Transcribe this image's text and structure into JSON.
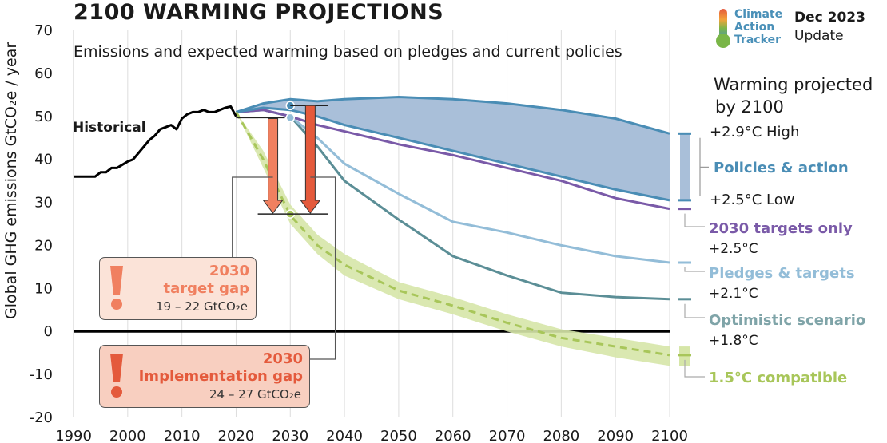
{
  "header": {
    "title": "2100 WARMING PROJECTIONS",
    "subtitle": "Emissions and expected warming based on pledges and current policies"
  },
  "logo": {
    "line1": "Climate",
    "line2": "Action",
    "line3": "Tracker"
  },
  "update": {
    "date": "Dec 2023",
    "label": "Update"
  },
  "legend_heading": {
    "line1": "Warming projected",
    "line2": "by 2100"
  },
  "labels": {
    "historical": "Historical",
    "high": "+2.9°C High",
    "policies": "Policies & action",
    "low": "+2.5°C Low",
    "targets2030": "2030 targets only",
    "targets2030_temp": "+2.5°C",
    "pledges": "Pledges & targets",
    "pledges_temp": "+2.1°C",
    "optimistic": "Optimistic scenario",
    "optimistic_temp": "+1.8°C",
    "compatible": "1.5°C compatible"
  },
  "target_gap": {
    "year": "2030",
    "label": "target gap",
    "range": "19 – 22  GtCO₂e"
  },
  "implementation_gap": {
    "year": "2030",
    "label": "Implementation gap",
    "range": "24 – 27  GtCO₂e"
  },
  "colors": {
    "historical": "#000000",
    "policies_fill": "#a9bfd9",
    "policies_line": "#4a8db5",
    "targets2030": "#7a5aa8",
    "pledges": "#93bdd8",
    "optimistic": "#5b8e96",
    "compatible": "#a8c65a",
    "compatible_band": "#d6e6a8",
    "target_gap": "#f08060",
    "implementation_gap": "#e45a3c",
    "gap_box_light": "#fbe3d8",
    "gap_box_dark": "#f8cfc0"
  },
  "chart_data": {
    "type": "line",
    "ylabel": "Global GHG emissions  GtCO₂e / year",
    "xlim": [
      1990,
      2100
    ],
    "ylim": [
      -20,
      70
    ],
    "xticks": [
      1990,
      2000,
      2010,
      2020,
      2030,
      2040,
      2050,
      2060,
      2070,
      2080,
      2090,
      2100
    ],
    "yticks": [
      -20,
      -10,
      0,
      10,
      20,
      30,
      40,
      50,
      60,
      70
    ],
    "series": [
      {
        "name": "Historical",
        "x": [
          1990,
          1994,
          1995,
          1996,
          1997,
          1998,
          2000,
          2001,
          2002,
          2003,
          2004,
          2005,
          2006,
          2007,
          2008,
          2009,
          2010,
          2011,
          2012,
          2013,
          2014,
          2015,
          2016,
          2017,
          2018,
          2019,
          2020
        ],
        "y": [
          36,
          36,
          37,
          37,
          38,
          38,
          39.5,
          40,
          41.5,
          43,
          44.5,
          45.5,
          47,
          47.5,
          48,
          47,
          49.5,
          50.5,
          51,
          51,
          51.5,
          51,
          51,
          51.5,
          52,
          52.3,
          50
        ]
      },
      {
        "name": "Policies & action",
        "x": [
          2020,
          2025,
          2030,
          2035,
          2040,
          2050,
          2060,
          2070,
          2080,
          2090,
          2100
        ],
        "y_high": [
          51,
          53,
          54,
          53.5,
          54,
          54.5,
          54,
          53,
          51.5,
          49.5,
          46
        ],
        "y_low": [
          51,
          52,
          51.5,
          50,
          48,
          45,
          42,
          39,
          36,
          33,
          30.5
        ]
      },
      {
        "name": "2030 targets only",
        "x": [
          2020,
          2025,
          2030,
          2035,
          2040,
          2050,
          2060,
          2070,
          2080,
          2090,
          2100
        ],
        "y": [
          51,
          51.5,
          50,
          48,
          46.5,
          43.5,
          41,
          38,
          35,
          31,
          28.5
        ]
      },
      {
        "name": "Pledges & targets",
        "x": [
          2020,
          2025,
          2030,
          2035,
          2040,
          2050,
          2060,
          2070,
          2080,
          2090,
          2100
        ],
        "y": [
          51,
          51.5,
          50,
          45,
          39,
          32,
          25.5,
          23,
          20,
          17.5,
          16
        ]
      },
      {
        "name": "Optimistic scenario",
        "x": [
          2020,
          2025,
          2030,
          2035,
          2040,
          2050,
          2060,
          2070,
          2080,
          2090,
          2100
        ],
        "y": [
          51,
          51.5,
          50,
          43,
          35,
          26,
          17.5,
          13,
          9,
          8,
          7.5
        ]
      },
      {
        "name": "1.5°C compatible",
        "x": [
          2020,
          2025,
          2030,
          2035,
          2040,
          2050,
          2060,
          2070,
          2080,
          2090,
          2100
        ],
        "y": [
          51,
          40,
          27,
          20,
          15.5,
          9.5,
          6,
          2,
          -1.5,
          -3.5,
          -5.5
        ],
        "y_high": [
          51,
          42,
          29.5,
          22.5,
          18,
          11.5,
          8,
          4,
          0.5,
          -1.5,
          -3.5
        ],
        "y_low": [
          51,
          38,
          25,
          18,
          13,
          7.5,
          4,
          0,
          -3.5,
          -6,
          -8
        ]
      }
    ],
    "gaps": {
      "target_gap": {
        "year": 2030,
        "from": 49.5,
        "to": 27.5
      },
      "implementation_gap": {
        "year": 2030,
        "from": 52.5,
        "to": 27.5
      }
    }
  }
}
